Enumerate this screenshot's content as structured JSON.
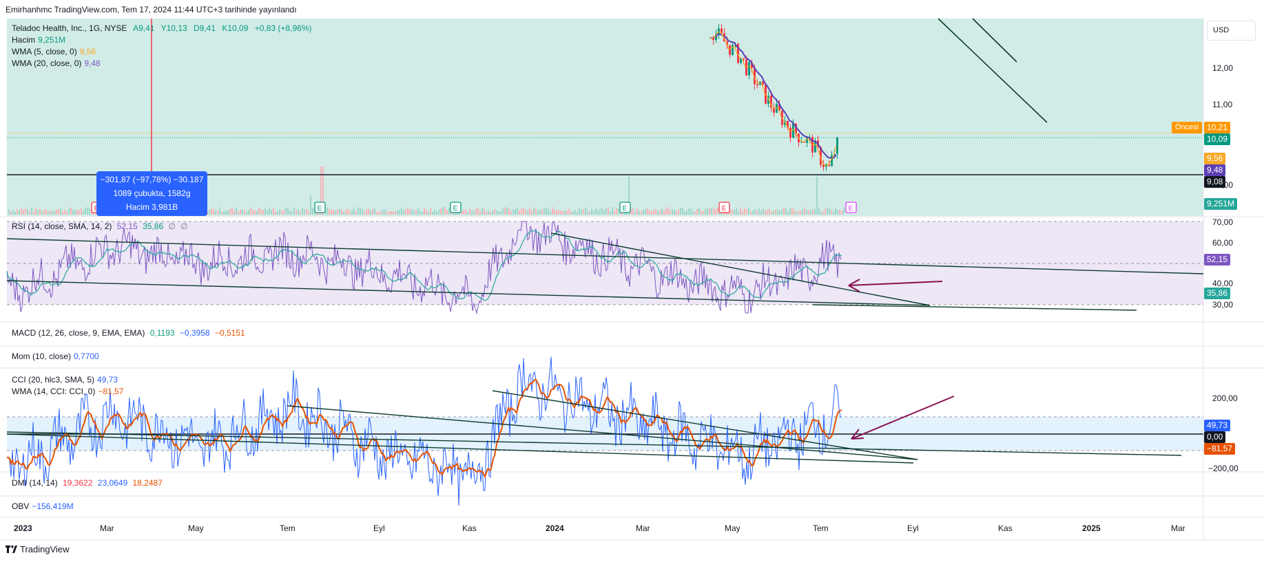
{
  "header": {
    "published": "Emirhanhmc TradingView.com, Tem 17, 2024 11:44 UTC+3 tarihinde yayınlandı"
  },
  "legend": {
    "main": {
      "symbol": "Teladoc Health, Inc., 1G, NYSE",
      "open": "A9,41",
      "high": "Y10,13",
      "low": "D9,41",
      "close": "K10,09",
      "change": "+0,83 (+8,96%)"
    },
    "volume": {
      "label": "Hacim",
      "value": "9,251M"
    },
    "wma5": {
      "label": "WMA (5, close, 0)",
      "value": "9,56"
    },
    "wma20": {
      "label": "WMA (20, close, 0)",
      "value": "9,48"
    },
    "rsi": {
      "label": "RSI (14, close, SMA, 14, 2)",
      "v1": "52,15",
      "v2": "35,86",
      "v3": "∅",
      "v4": "∅"
    },
    "macd": {
      "label": "MACD (12, 26, close, 9, EMA, EMA)",
      "v1": "0,1193",
      "v2": "−0,3958",
      "v3": "−0,5151"
    },
    "mom": {
      "label": "Mom (10, close)",
      "value": "0,7700"
    },
    "cci": {
      "label": "CCI (20, hlc3, SMA, 5)",
      "value": "49,73"
    },
    "cci_wma": {
      "label": "WMA (14, CCI: CCI, 0)",
      "value": "−81,57"
    },
    "dmi": {
      "label": "DMI (14, 14)",
      "v1": "19,3622",
      "v2": "23,0649",
      "v3": "18,2487"
    },
    "obv": {
      "label": "OBV",
      "value": "−156,419M"
    }
  },
  "measure_box": {
    "line1": "−301,87 (−97,78%) −30.187",
    "line2": "1089 çubukta, 1582g",
    "line3": "Hacim 3,981B"
  },
  "price_axis": {
    "currency": "USD",
    "ticks": [
      "12,00",
      "11,00",
      "10,00"
    ],
    "rsi_ticks": [
      "70,00",
      "60,00",
      "40,00",
      "30,00"
    ],
    "cci_ticks": [
      "200,00",
      "−200,00"
    ]
  },
  "price_tags": {
    "premarket_label": "Öncesi",
    "premarket": "10,21",
    "last": "10,09",
    "wma5": "9,56",
    "wma20": "9,48",
    "level": "9,08",
    "volume": "9,251M",
    "rsi": "52,15",
    "rsi_ma": "35,86",
    "cci": "49,73",
    "cci_zero": "0,00",
    "cci_wma": "−81,57"
  },
  "time_axis": [
    "2023",
    "Mar",
    "May",
    "Tem",
    "Eyl",
    "Kas",
    "2024",
    "Mar",
    "May",
    "Tem",
    "Eyl",
    "Kas",
    "2025",
    "Mar"
  ],
  "earnings_markers": [
    "E",
    "E",
    "E",
    "E",
    "E",
    "E",
    "E"
  ],
  "brand": "TradingView",
  "colors": {
    "price_bg": "#d1ece6",
    "rsi_bg": "#ede7f6",
    "cci_bg": "#e3f2fd",
    "up": "#089981",
    "down": "#f23645",
    "wma20": "#5b3fb5",
    "wma5": "#f9a825",
    "rsi_line": "#7e57c2",
    "rsi_ma": "#26a69a",
    "cci_line": "#2962ff",
    "cci_wma": "#e65100",
    "arrow": "#880e4f"
  },
  "chart_data": [
    {
      "type": "candlestick",
      "title": "Teladoc Health, Inc., 1G, NYSE",
      "visible_series": [
        {
          "name": "WMA (5, close, 0)",
          "last": 9.56
        },
        {
          "name": "WMA (20, close, 0)",
          "last": 9.48
        }
      ],
      "recent_close_path": [
        {
          "x": "2024-04-22",
          "y": 13.0
        },
        {
          "x": "2024-05-10",
          "y": 12.3
        },
        {
          "x": "2024-05-31",
          "y": 11.0
        },
        {
          "x": "2024-06-14",
          "y": 10.3
        },
        {
          "x": "2024-06-28",
          "y": 9.9
        },
        {
          "x": "2024-07-09",
          "y": 9.2
        },
        {
          "x": "2024-07-16",
          "y": 10.09
        }
      ],
      "horizontal_level": 9.08,
      "last": 10.09,
      "premarket": 10.21,
      "volume_last": "9,251M"
    },
    {
      "type": "line",
      "title": "RSI (14, close, SMA, 14, 2)",
      "ylim": [
        25,
        72
      ],
      "bands": [
        30,
        50,
        70
      ],
      "series": [
        {
          "name": "RSI",
          "x": [
            "2023-01",
            "2023-03",
            "2023-05",
            "2023-07",
            "2023-09",
            "2023-11",
            "2023-12",
            "2024-03",
            "2024-05",
            "2024-07"
          ],
          "values": [
            38,
            58,
            50,
            55,
            45,
            32,
            68,
            45,
            35,
            52.15
          ]
        },
        {
          "name": "RSI MA",
          "last": 35.86
        }
      ]
    },
    {
      "type": "line",
      "title": "CCI (20, hlc3, SMA, 5)",
      "ylim": [
        -220,
        230
      ],
      "bands": [
        -100,
        0,
        100
      ],
      "series": [
        {
          "name": "CCI",
          "x": [
            "2023-01",
            "2023-03",
            "2023-05",
            "2023-07",
            "2023-09",
            "2023-11",
            "2023-12",
            "2024-03",
            "2024-05",
            "2024-07"
          ],
          "values": [
            -80,
            60,
            -40,
            80,
            -60,
            -120,
            150,
            20,
            -60,
            49.73
          ]
        },
        {
          "name": "WMA (14, CCI: CCI, 0)",
          "last": -81.57
        }
      ]
    }
  ]
}
